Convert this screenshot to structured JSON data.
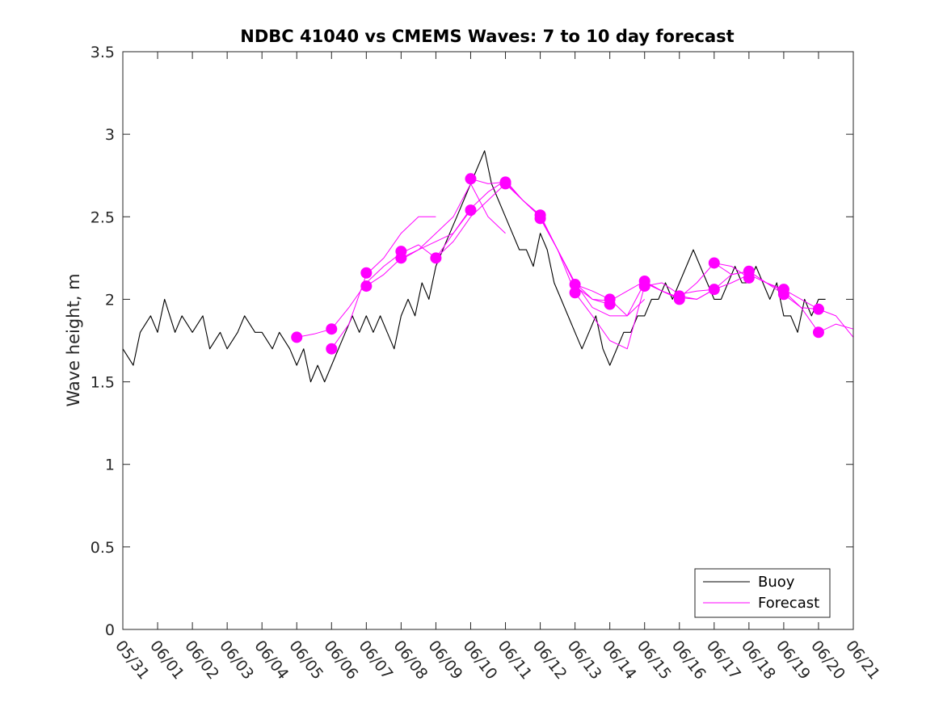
{
  "chart_data": {
    "type": "line",
    "title": "NDBC 41040 vs CMEMS Waves: 7 to 10 day forecast",
    "xlabel": "",
    "ylabel": "Wave height, m",
    "ylim": [
      0,
      3.5
    ],
    "yticks": [
      0,
      0.5,
      1,
      1.5,
      2,
      2.5,
      3,
      3.5
    ],
    "ytick_labels": [
      "0",
      "0.5",
      "1",
      "1.5",
      "2",
      "2.5",
      "3",
      "3.5"
    ],
    "xlim": [
      0,
      21
    ],
    "xticks": [
      0,
      1,
      2,
      3,
      4,
      5,
      6,
      7,
      8,
      9,
      10,
      11,
      12,
      13,
      14,
      15,
      16,
      17,
      18,
      19,
      20,
      21
    ],
    "xtick_labels": [
      "05/31",
      "06/01",
      "06/02",
      "06/03",
      "06/04",
      "06/05",
      "06/06",
      "06/07",
      "06/08",
      "06/09",
      "06/10",
      "06/11",
      "06/12",
      "06/13",
      "06/14",
      "06/15",
      "06/16",
      "06/17",
      "06/18",
      "06/19",
      "06/20",
      "06/21"
    ],
    "grid": false,
    "legend": {
      "location": "bottom-right",
      "entries": [
        "Buoy",
        "Forecast"
      ]
    },
    "colors": {
      "buoy": "#000000",
      "forecast": "#ff00ff"
    },
    "series": [
      {
        "name": "Buoy",
        "color": "#000000",
        "x": [
          0,
          0.3,
          0.5,
          0.8,
          1.0,
          1.2,
          1.5,
          1.7,
          2.0,
          2.3,
          2.5,
          2.8,
          3.0,
          3.3,
          3.5,
          3.8,
          4.0,
          4.3,
          4.5,
          4.8,
          5.0,
          5.2,
          5.4,
          5.6,
          5.8,
          6.0,
          6.2,
          6.4,
          6.6,
          6.8,
          7.0,
          7.2,
          7.4,
          7.6,
          7.8,
          8.0,
          8.2,
          8.4,
          8.6,
          8.8,
          9.0,
          9.2,
          9.4,
          9.6,
          9.8,
          10.0,
          10.2,
          10.4,
          10.6,
          10.8,
          11.0,
          11.2,
          11.4,
          11.6,
          11.8,
          12.0,
          12.2,
          12.4,
          12.6,
          12.8,
          13.0,
          13.2,
          13.4,
          13.6,
          13.8,
          14.0,
          14.2,
          14.4,
          14.6,
          14.8,
          15.0,
          15.2,
          15.4,
          15.6,
          15.8,
          16.0,
          16.2,
          16.4,
          16.6,
          16.8,
          17.0,
          17.2,
          17.4,
          17.6,
          17.8,
          18.0,
          18.2,
          18.4,
          18.6,
          18.8,
          19.0,
          19.2,
          19.4,
          19.6,
          19.8,
          20.0,
          20.2
        ],
        "y": [
          1.7,
          1.6,
          1.8,
          1.9,
          1.8,
          2.0,
          1.8,
          1.9,
          1.8,
          1.9,
          1.7,
          1.8,
          1.7,
          1.8,
          1.9,
          1.8,
          1.8,
          1.7,
          1.8,
          1.7,
          1.6,
          1.7,
          1.5,
          1.6,
          1.5,
          1.6,
          1.7,
          1.8,
          1.9,
          1.8,
          1.9,
          1.8,
          1.9,
          1.8,
          1.7,
          1.9,
          2.0,
          1.9,
          2.1,
          2.0,
          2.2,
          2.3,
          2.4,
          2.5,
          2.6,
          2.7,
          2.8,
          2.9,
          2.7,
          2.6,
          2.5,
          2.4,
          2.3,
          2.3,
          2.2,
          2.4,
          2.3,
          2.1,
          2.0,
          1.9,
          1.8,
          1.7,
          1.8,
          1.9,
          1.7,
          1.6,
          1.7,
          1.8,
          1.8,
          1.9,
          1.9,
          2.0,
          2.0,
          2.1,
          2.0,
          2.1,
          2.2,
          2.3,
          2.2,
          2.1,
          2.0,
          2.0,
          2.1,
          2.2,
          2.1,
          2.1,
          2.2,
          2.1,
          2.0,
          2.1,
          1.9,
          1.9,
          1.8,
          2.0,
          1.9,
          2.0,
          2.0
        ]
      },
      {
        "name": "Forecast",
        "color": "#ff00ff",
        "x": [
          5.0,
          5.5,
          6.0,
          6.5,
          7.0,
          7.5,
          8.0,
          8.5,
          9.0,
          9.5,
          10.0,
          10.5,
          11.0
        ],
        "y": [
          1.77,
          1.79,
          1.82,
          1.95,
          2.1,
          2.2,
          2.28,
          2.33,
          2.25,
          2.35,
          2.5,
          2.6,
          2.7
        ]
      },
      {
        "name": "",
        "color": "#ff00ff",
        "x": [
          6.0,
          6.5,
          7.0,
          7.5,
          8.0,
          8.5,
          9.0
        ],
        "y": [
          1.7,
          1.85,
          2.15,
          2.25,
          2.4,
          2.5,
          2.5
        ]
      },
      {
        "name": "",
        "color": "#ff00ff",
        "x": [
          7.0,
          7.5,
          8.0,
          8.5,
          9.0,
          9.5,
          10.0
        ],
        "y": [
          2.08,
          2.15,
          2.25,
          2.3,
          2.35,
          2.4,
          2.54
        ]
      },
      {
        "name": "",
        "color": "#ff00ff",
        "x": [
          8.0,
          8.5,
          9.0,
          9.5,
          10.0,
          10.5,
          11.0
        ],
        "y": [
          2.24,
          2.3,
          2.4,
          2.5,
          2.7,
          2.5,
          2.4
        ]
      },
      {
        "name": "",
        "color": "#ff00ff",
        "x": [
          9.0,
          9.5,
          10.0,
          10.5,
          11.0,
          11.5,
          12.0,
          12.5,
          13.0,
          13.5,
          14.0
        ],
        "y": [
          2.25,
          2.4,
          2.55,
          2.65,
          2.72,
          2.6,
          2.5,
          2.3,
          2.1,
          2.0,
          1.97
        ]
      },
      {
        "name": "",
        "color": "#ff00ff",
        "x": [
          10.0,
          10.5,
          11.0,
          11.5,
          12.0,
          12.5,
          13.0,
          13.5,
          14.0,
          14.5,
          15.0
        ],
        "y": [
          2.73,
          2.7,
          2.71,
          2.6,
          2.5,
          2.3,
          2.1,
          1.95,
          1.9,
          1.9,
          2.0
        ]
      },
      {
        "name": "",
        "color": "#ff00ff",
        "x": [
          11.0,
          11.5,
          12.0,
          12.5,
          13.0,
          13.5,
          14.0,
          14.5,
          15.0,
          15.5,
          16.0
        ],
        "y": [
          2.7,
          2.6,
          2.51,
          2.3,
          2.09,
          2.05,
          2.0,
          1.9,
          2.1,
          2.05,
          2.0
        ]
      },
      {
        "name": "",
        "color": "#ff00ff",
        "x": [
          12.0,
          12.5,
          13.0,
          13.5,
          14.0,
          14.5,
          15.0,
          15.5,
          16.0,
          16.5,
          17.0
        ],
        "y": [
          2.49,
          2.3,
          2.04,
          1.9,
          1.75,
          1.7,
          2.08,
          2.1,
          2.03,
          2.05,
          2.06
        ]
      },
      {
        "name": "",
        "color": "#ff00ff",
        "x": [
          13.0,
          13.5,
          14.0,
          14.5,
          15.0,
          15.5,
          16.0,
          16.5,
          17.0,
          17.5,
          18.0
        ],
        "y": [
          2.08,
          2.0,
          1.99,
          2.05,
          2.11,
          2.05,
          2.01,
          2.1,
          2.22,
          2.2,
          2.13
        ]
      },
      {
        "name": "",
        "color": "#ff00ff",
        "x": [
          15.0,
          15.5,
          16.0,
          16.5,
          17.0,
          17.5,
          18.0,
          18.5,
          19.0,
          19.5,
          20.0
        ],
        "y": [
          2.1,
          2.05,
          2.01,
          2.0,
          2.06,
          2.15,
          2.17,
          2.1,
          2.06,
          2.0,
          1.94
        ]
      },
      {
        "name": "",
        "color": "#ff00ff",
        "x": [
          16.0,
          16.5,
          17.0,
          17.5,
          18.0,
          18.5,
          19.0,
          19.5,
          20.0,
          20.5,
          21.0
        ],
        "y": [
          2.02,
          2.0,
          2.06,
          2.1,
          2.15,
          2.1,
          2.03,
          1.95,
          1.8,
          1.85,
          1.82
        ]
      },
      {
        "name": "",
        "color": "#ff00ff",
        "x": [
          17.0,
          17.5,
          18.0,
          18.5,
          19.0,
          19.5,
          20.0,
          20.5,
          21.0
        ],
        "y": [
          2.22,
          2.15,
          2.17,
          2.1,
          2.05,
          1.95,
          1.94,
          1.9,
          1.77
        ]
      }
    ],
    "forecast_markers": {
      "x": [
        5.0,
        6.0,
        6.0,
        7.0,
        7.0,
        8.0,
        8.0,
        9.0,
        10.0,
        10.0,
        11.0,
        11.0,
        12.0,
        12.0,
        13.0,
        13.0,
        14.0,
        14.0,
        15.0,
        15.0,
        16.0,
        16.0,
        17.0,
        17.0,
        18.0,
        18.0,
        19.0,
        19.0,
        20.0,
        20.0
      ],
      "y": [
        1.77,
        1.82,
        1.7,
        2.16,
        2.08,
        2.29,
        2.25,
        2.25,
        2.73,
        2.54,
        2.71,
        2.7,
        2.51,
        2.49,
        2.09,
        2.04,
        2.0,
        1.97,
        2.11,
        2.08,
        2.02,
        2.0,
        2.22,
        2.06,
        2.17,
        2.13,
        2.06,
        2.03,
        1.94,
        1.8
      ]
    }
  }
}
